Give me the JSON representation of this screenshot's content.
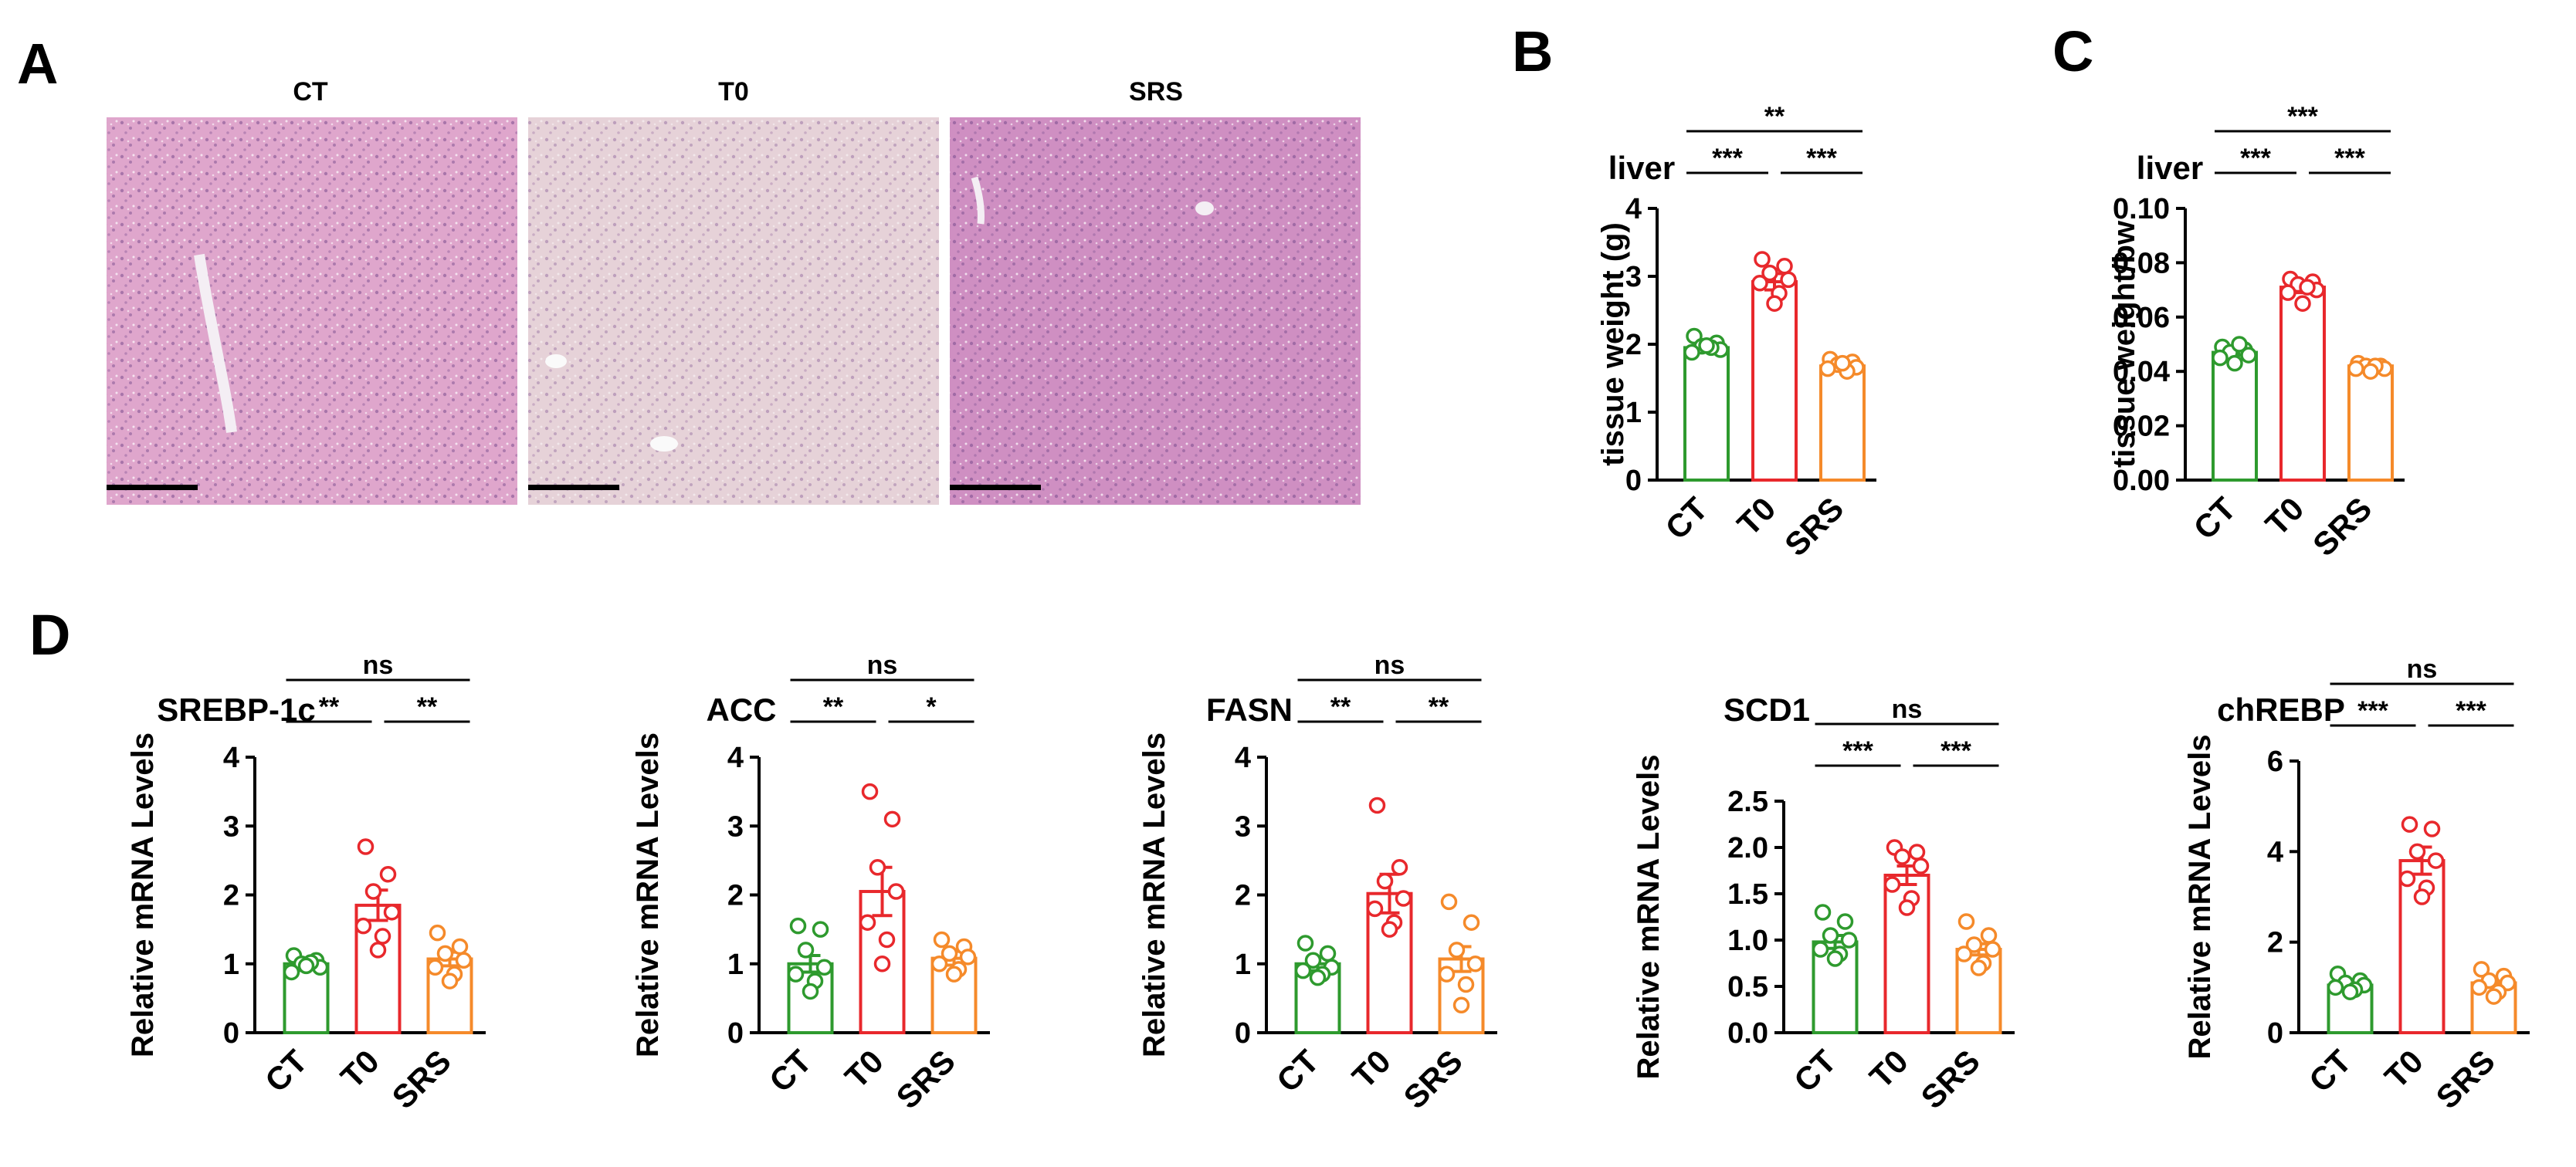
{
  "panels": {
    "A": "A",
    "B": "B",
    "C": "C",
    "D": "D"
  },
  "micrographs": [
    {
      "title": "CT",
      "tone": "#dfa6cc"
    },
    {
      "title": "T0",
      "tone": "#e6d2d8"
    },
    {
      "title": "SRS",
      "tone": "#cf8fc2"
    }
  ],
  "colors": {
    "CT": "#2e9a2e",
    "T0": "#e8282c",
    "SRS": "#f58a2a"
  },
  "chart_data": [
    {
      "id": "B",
      "type": "bar",
      "title": "liver",
      "ylabel": "tissue weight (g)",
      "categories": [
        "CT",
        "T0",
        "SRS"
      ],
      "values": [
        1.95,
        2.92,
        1.68
      ],
      "sem": [
        0.05,
        0.12,
        0.04
      ],
      "points": [
        [
          2.12,
          2.02,
          1.97,
          1.92,
          1.88,
          1.95,
          1.98
        ],
        [
          3.25,
          3.15,
          3.05,
          2.95,
          2.9,
          2.75,
          2.6
        ],
        [
          1.78,
          1.74,
          1.7,
          1.66,
          1.64,
          1.6,
          1.72
        ]
      ],
      "ylim": [
        0,
        4
      ],
      "yticks": [
        "0",
        "1",
        "2",
        "3",
        "4"
      ],
      "comparisons": [
        {
          "from": 0,
          "to": 1,
          "label": "***"
        },
        {
          "from": 1,
          "to": 2,
          "label": "***"
        },
        {
          "from": 0,
          "to": 2,
          "label": "**"
        }
      ]
    },
    {
      "id": "C",
      "type": "bar",
      "title": "liver",
      "ylabel": "tissue weight/bw",
      "categories": [
        "CT",
        "T0",
        "SRS"
      ],
      "values": [
        0.047,
        0.071,
        0.042
      ],
      "sem": [
        0.001,
        0.002,
        0.001
      ],
      "points": [
        [
          0.049,
          0.048,
          0.047,
          0.046,
          0.045,
          0.05,
          0.043
        ],
        [
          0.074,
          0.073,
          0.072,
          0.07,
          0.069,
          0.071,
          0.065
        ],
        [
          0.043,
          0.042,
          0.042,
          0.041,
          0.041,
          0.042,
          0.04
        ]
      ],
      "ylim": [
        0,
        0.1
      ],
      "yticks": [
        "0.00",
        "0.02",
        "0.04",
        "0.06",
        "0.08",
        "0.10"
      ],
      "comparisons": [
        {
          "from": 0,
          "to": 1,
          "label": "***"
        },
        {
          "from": 1,
          "to": 2,
          "label": "***"
        },
        {
          "from": 0,
          "to": 2,
          "label": "***"
        }
      ]
    },
    {
      "id": "D1",
      "type": "bar",
      "title": "SREBP-1c",
      "ylabel": "Relative mRNA Levels",
      "categories": [
        "CT",
        "T0",
        "SRS"
      ],
      "values": [
        1.0,
        1.85,
        1.07
      ],
      "sem": [
        0.06,
        0.22,
        0.1
      ],
      "points": [
        [
          1.12,
          1.05,
          1.0,
          0.95,
          0.88,
          1.02,
          0.97
        ],
        [
          2.7,
          2.3,
          2.05,
          1.75,
          1.55,
          1.4,
          1.2
        ],
        [
          1.45,
          1.25,
          1.15,
          1.05,
          0.95,
          0.85,
          0.75
        ]
      ],
      "ylim": [
        0,
        4
      ],
      "yticks": [
        "0",
        "1",
        "2",
        "3",
        "4"
      ],
      "comparisons": [
        {
          "from": 0,
          "to": 1,
          "label": "**"
        },
        {
          "from": 1,
          "to": 2,
          "label": "**"
        },
        {
          "from": 0,
          "to": 2,
          "label": "ns"
        }
      ]
    },
    {
      "id": "D2",
      "type": "bar",
      "title": "ACC",
      "ylabel": "Relative mRNA Levels",
      "categories": [
        "CT",
        "T0",
        "SRS"
      ],
      "values": [
        1.0,
        2.05,
        1.08
      ],
      "sem": [
        0.12,
        0.35,
        0.1
      ],
      "points": [
        [
          1.55,
          1.5,
          1.2,
          0.95,
          0.85,
          0.75,
          0.6
        ],
        [
          3.5,
          3.1,
          2.4,
          2.05,
          1.6,
          1.35,
          1.0
        ],
        [
          1.35,
          1.25,
          1.15,
          1.1,
          1.0,
          0.92,
          0.85
        ]
      ],
      "ylim": [
        0,
        4
      ],
      "yticks": [
        "0",
        "1",
        "2",
        "3",
        "4"
      ],
      "comparisons": [
        {
          "from": 0,
          "to": 1,
          "label": "**"
        },
        {
          "from": 1,
          "to": 2,
          "label": "*"
        },
        {
          "from": 0,
          "to": 2,
          "label": "ns"
        }
      ]
    },
    {
      "id": "D3",
      "type": "bar",
      "title": "FASN",
      "ylabel": "Relative mRNA Levels",
      "categories": [
        "CT",
        "T0",
        "SRS"
      ],
      "values": [
        1.0,
        2.02,
        1.07
      ],
      "sem": [
        0.1,
        0.28,
        0.18
      ],
      "points": [
        [
          1.3,
          1.15,
          1.05,
          0.95,
          0.9,
          0.85,
          0.8
        ],
        [
          3.3,
          2.4,
          2.2,
          1.95,
          1.8,
          1.6,
          1.5
        ],
        [
          1.9,
          1.6,
          1.2,
          1.0,
          0.85,
          0.7,
          0.4
        ]
      ],
      "ylim": [
        0,
        4
      ],
      "yticks": [
        "0",
        "1",
        "2",
        "3",
        "4"
      ],
      "comparisons": [
        {
          "from": 0,
          "to": 1,
          "label": "**"
        },
        {
          "from": 1,
          "to": 2,
          "label": "**"
        },
        {
          "from": 0,
          "to": 2,
          "label": "ns"
        }
      ]
    },
    {
      "id": "D4",
      "type": "bar",
      "title": "SCD1",
      "ylabel": "Relative mRNA Levels",
      "categories": [
        "CT",
        "T0",
        "SRS"
      ],
      "values": [
        0.98,
        1.7,
        0.9
      ],
      "sem": [
        0.07,
        0.1,
        0.06
      ],
      "points": [
        [
          1.3,
          1.2,
          1.05,
          1.0,
          0.9,
          0.85,
          0.8
        ],
        [
          2.0,
          1.95,
          1.9,
          1.8,
          1.6,
          1.45,
          1.35
        ],
        [
          1.2,
          1.05,
          0.95,
          0.9,
          0.85,
          0.75,
          0.7
        ]
      ],
      "ylim": [
        0,
        2.5
      ],
      "yticks": [
        "0.0",
        "0.5",
        "1.0",
        "1.5",
        "2.0",
        "2.5"
      ],
      "comparisons": [
        {
          "from": 0,
          "to": 1,
          "label": "***"
        },
        {
          "from": 1,
          "to": 2,
          "label": "***"
        },
        {
          "from": 0,
          "to": 2,
          "label": "ns"
        }
      ]
    },
    {
      "id": "D5",
      "type": "bar",
      "title": "chREBP",
      "ylabel": "Relative mRNA Levels",
      "categories": [
        "CT",
        "T0",
        "SRS"
      ],
      "values": [
        1.05,
        3.8,
        1.1
      ],
      "sem": [
        0.06,
        0.3,
        0.1
      ],
      "points": [
        [
          1.3,
          1.15,
          1.1,
          1.05,
          1.0,
          0.95,
          0.9
        ],
        [
          4.6,
          4.5,
          4.0,
          3.8,
          3.4,
          3.2,
          3.0
        ],
        [
          1.4,
          1.25,
          1.15,
          1.1,
          1.0,
          0.9,
          0.8
        ]
      ],
      "ylim": [
        0,
        6
      ],
      "yticks": [
        "0",
        "2",
        "4",
        "6"
      ],
      "comparisons": [
        {
          "from": 0,
          "to": 1,
          "label": "***"
        },
        {
          "from": 1,
          "to": 2,
          "label": "***"
        },
        {
          "from": 0,
          "to": 2,
          "label": "ns"
        }
      ]
    }
  ]
}
